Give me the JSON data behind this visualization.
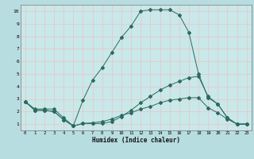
{
  "xlabel": "Humidex (Indice chaleur)",
  "bg_color": "#b8dde0",
  "plot_bg_color": "#c8e8ea",
  "grid_color": "#e8c8c8",
  "line_color": "#2a6b60",
  "xlim": [
    -0.5,
    23.5
  ],
  "ylim": [
    0.5,
    10.5
  ],
  "xticks": [
    0,
    1,
    2,
    3,
    4,
    5,
    6,
    7,
    8,
    9,
    10,
    11,
    12,
    13,
    14,
    15,
    16,
    17,
    18,
    19,
    20,
    21,
    22,
    23
  ],
  "yticks": [
    1,
    2,
    3,
    4,
    5,
    6,
    7,
    8,
    9,
    10
  ],
  "curve1_x": [
    0,
    1,
    2,
    3,
    4,
    5,
    6,
    7,
    8,
    9,
    10,
    11,
    12,
    13,
    14,
    15,
    16,
    17,
    18,
    19,
    20,
    21,
    22,
    23
  ],
  "curve1_y": [
    2.8,
    2.2,
    2.2,
    2.2,
    1.5,
    0.85,
    2.9,
    4.5,
    5.5,
    6.7,
    7.9,
    8.8,
    10.0,
    10.1,
    10.1,
    10.1,
    9.7,
    8.3,
    5.0,
    3.1,
    2.6,
    1.5,
    1.0,
    1.0
  ],
  "curve2_x": [
    0,
    1,
    2,
    3,
    4,
    5,
    6,
    7,
    8,
    9,
    10,
    11,
    12,
    13,
    14,
    15,
    16,
    17,
    18,
    19,
    20,
    21,
    22,
    23
  ],
  "curve2_y": [
    2.8,
    2.1,
    2.1,
    2.0,
    1.35,
    0.85,
    1.05,
    1.05,
    1.05,
    1.2,
    1.6,
    2.1,
    2.7,
    3.2,
    3.7,
    4.1,
    4.4,
    4.7,
    4.8,
    3.2,
    2.6,
    1.5,
    1.0,
    1.0
  ],
  "curve3_x": [
    0,
    1,
    2,
    3,
    4,
    5,
    6,
    7,
    8,
    9,
    10,
    11,
    12,
    13,
    14,
    15,
    16,
    17,
    18,
    19,
    20,
    21,
    22,
    23
  ],
  "curve3_y": [
    2.8,
    2.1,
    2.1,
    2.0,
    1.35,
    0.85,
    1.05,
    1.1,
    1.2,
    1.4,
    1.7,
    1.9,
    2.2,
    2.4,
    2.7,
    2.9,
    3.0,
    3.1,
    3.1,
    2.3,
    1.9,
    1.4,
    1.0,
    1.0
  ]
}
